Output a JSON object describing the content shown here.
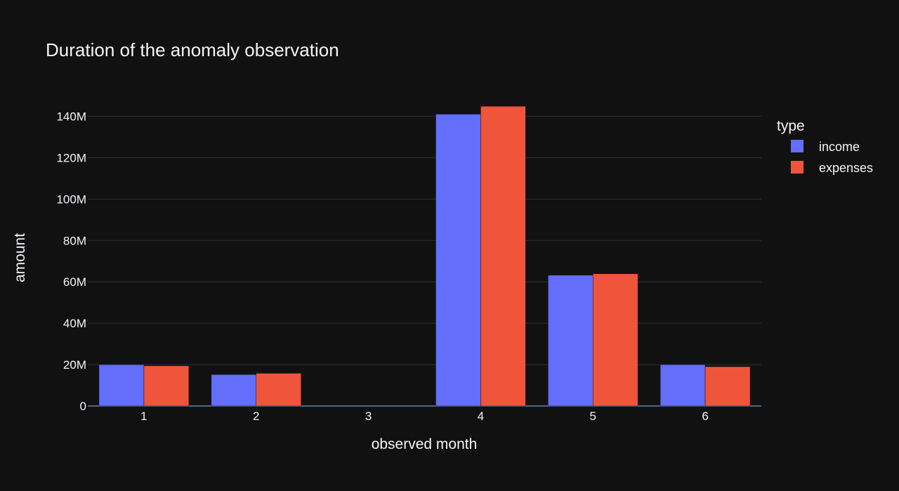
{
  "chart_data": {
    "type": "bar",
    "title": "Duration of the anomaly observation",
    "xlabel": "observed month",
    "ylabel": "amount",
    "categories": [
      "1",
      "2",
      "3",
      "4",
      "5",
      "6"
    ],
    "series": [
      {
        "name": "income",
        "color": "#636efa",
        "values": [
          20000000,
          15200000,
          0,
          141000000,
          63200000,
          20000000
        ]
      },
      {
        "name": "expenses",
        "color": "#ef553b",
        "values": [
          19400000,
          15800000,
          0,
          144800000,
          63900000,
          19000000
        ]
      }
    ],
    "ylim": [
      0,
      150000000
    ],
    "yticks": [
      {
        "value": 0,
        "label": "0"
      },
      {
        "value": 20000000,
        "label": "20M"
      },
      {
        "value": 40000000,
        "label": "40M"
      },
      {
        "value": 60000000,
        "label": "60M"
      },
      {
        "value": 80000000,
        "label": "80M"
      },
      {
        "value": 100000000,
        "label": "100M"
      },
      {
        "value": 120000000,
        "label": "120M"
      },
      {
        "value": 140000000,
        "label": "140M"
      }
    ],
    "legend": {
      "title": "type",
      "position": "right"
    },
    "grid": true,
    "colors": {
      "background": "#111111",
      "grid": "#283442",
      "text": "#f2f5fa",
      "axis_line": "#506784"
    }
  }
}
